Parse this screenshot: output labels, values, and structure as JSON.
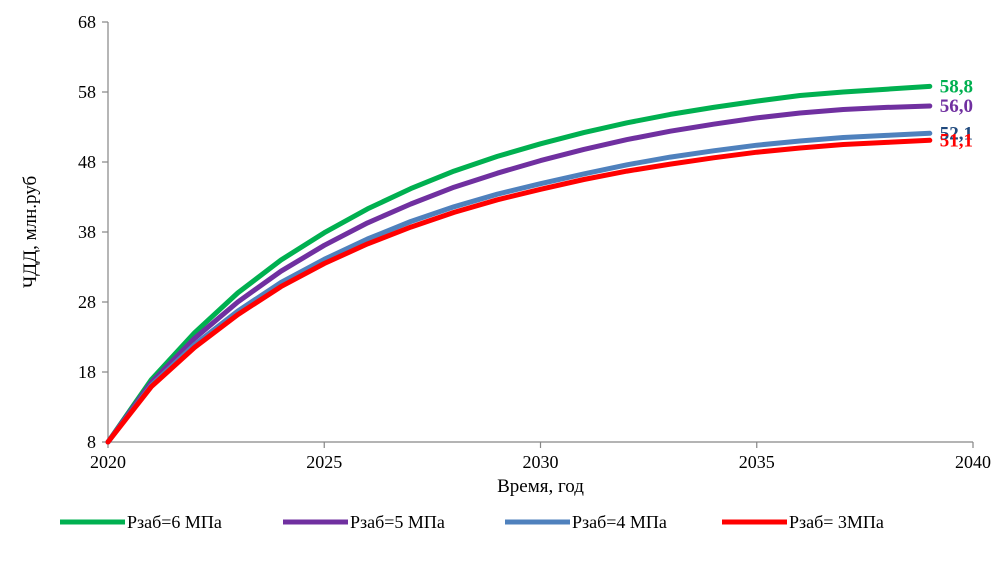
{
  "chart_data": {
    "type": "line",
    "xlabel": "Время, год",
    "ylabel": "ЧДД, млн.руб",
    "xlim": [
      2020,
      2040
    ],
    "ylim": [
      8,
      68
    ],
    "x_ticks": [
      "2020",
      "2025",
      "2030",
      "2035",
      "2040"
    ],
    "y_ticks": [
      "8",
      "18",
      "28",
      "38",
      "48",
      "58",
      "68"
    ],
    "grid": false,
    "legend_position": "bottom",
    "x": [
      2020,
      2021,
      2022,
      2023,
      2024,
      2025,
      2026,
      2027,
      2028,
      2029,
      2030,
      2031,
      2032,
      2033,
      2034,
      2035,
      2036,
      2037,
      2038,
      2039
    ],
    "series": [
      {
        "name": "Рзаб=6 МПа",
        "color": "#00B050",
        "values": [
          8.0,
          16.9,
          23.6,
          29.3,
          34.0,
          37.9,
          41.3,
          44.2,
          46.7,
          48.8,
          50.6,
          52.2,
          53.6,
          54.8,
          55.8,
          56.7,
          57.5,
          58.0,
          58.4,
          58.8
        ],
        "end_label": "58,8"
      },
      {
        "name": "Рзаб=5 МПа",
        "color": "#7030A0",
        "values": [
          8.0,
          16.5,
          22.8,
          28.0,
          32.4,
          36.1,
          39.3,
          42.0,
          44.4,
          46.4,
          48.2,
          49.8,
          51.2,
          52.4,
          53.4,
          54.3,
          55.0,
          55.5,
          55.8,
          56.0
        ],
        "end_label": "56,0"
      },
      {
        "name": "Рзаб=4 МПа",
        "color": "#4F81BD",
        "values": [
          8.0,
          16.1,
          21.9,
          26.7,
          30.8,
          34.1,
          37.0,
          39.5,
          41.6,
          43.4,
          44.9,
          46.3,
          47.6,
          48.7,
          49.6,
          50.4,
          51.0,
          51.5,
          51.8,
          52.1
        ],
        "end_label": "52,1",
        "end_label_color": "#1F497D"
      },
      {
        "name": "Рзаб= 3МПа",
        "color": "#FF0000",
        "values": [
          8.0,
          15.9,
          21.5,
          26.2,
          30.2,
          33.5,
          36.3,
          38.7,
          40.8,
          42.6,
          44.1,
          45.5,
          46.7,
          47.7,
          48.6,
          49.4,
          50.0,
          50.5,
          50.8,
          51.1
        ],
        "end_label": "51,1"
      }
    ]
  }
}
